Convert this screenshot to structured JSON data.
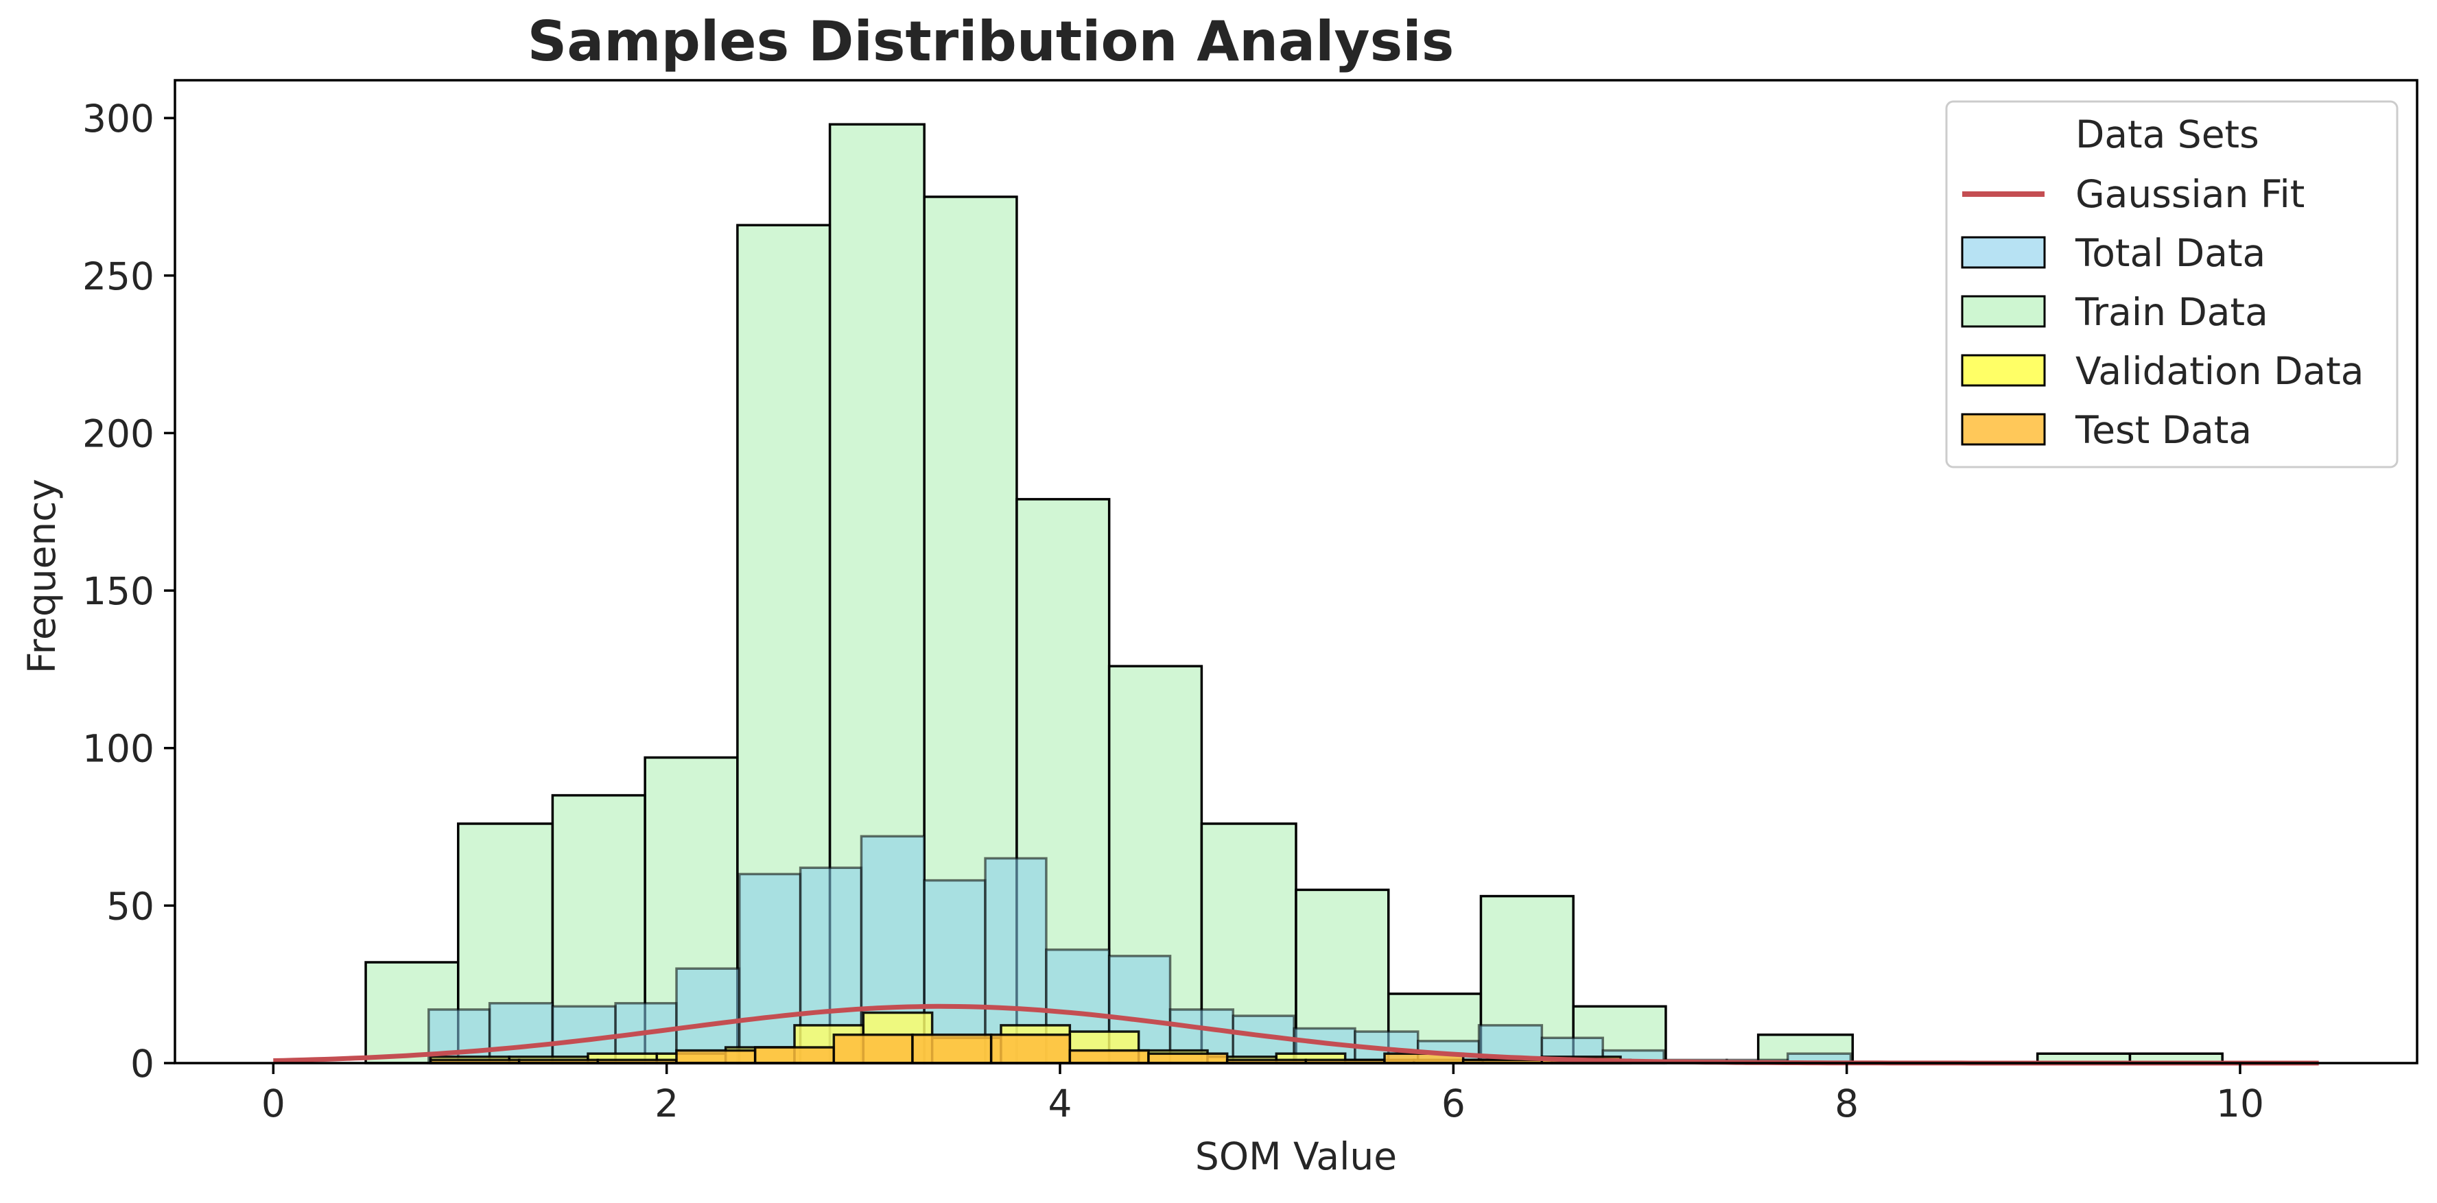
{
  "chart_data": {
    "type": "bar",
    "title": "Samples Distribution Analysis",
    "xlabel": "SOM Value",
    "ylabel": "Frequency",
    "xlim": [
      -0.5,
      10.9
    ],
    "ylim": [
      0,
      312
    ],
    "xticks": [
      0,
      2,
      4,
      6,
      8,
      10
    ],
    "yticks": [
      0,
      50,
      100,
      150,
      200,
      250,
      300
    ],
    "grid": false,
    "legend": {
      "title": "Data Sets",
      "position": "top-right",
      "entries": [
        "Gaussian Fit",
        "Total Data",
        "Train Data",
        "Validation Data",
        "Test Data"
      ]
    },
    "series": [
      {
        "name": "Train Data",
        "kind": "histogram",
        "color": "#c9f5cc",
        "bin_edges": [
          0.47,
          0.94,
          1.42,
          1.89,
          2.36,
          2.83,
          3.31,
          3.78,
          4.25,
          4.72,
          5.2,
          5.67,
          6.14,
          6.61,
          7.08,
          7.55,
          8.03,
          8.5,
          8.97,
          9.44,
          9.91
        ],
        "counts": [
          32,
          76,
          85,
          97,
          266,
          298,
          275,
          179,
          126,
          76,
          55,
          22,
          53,
          18,
          0,
          9,
          0,
          0,
          3,
          3
        ]
      },
      {
        "name": "Total Data",
        "kind": "histogram",
        "color": "#87ceeb",
        "bin_edges": [
          0.79,
          1.1,
          1.42,
          1.74,
          2.05,
          2.37,
          2.68,
          2.99,
          3.31,
          3.62,
          3.93,
          4.25,
          4.56,
          4.88,
          5.19,
          5.5,
          5.82,
          6.13,
          6.45,
          6.76,
          7.07,
          7.39,
          7.7,
          8.02,
          8.33,
          8.64,
          8.96,
          9.27,
          9.58,
          9.9
        ],
        "counts": [
          17,
          19,
          18,
          19,
          30,
          60,
          62,
          72,
          58,
          65,
          36,
          34,
          17,
          15,
          11,
          10,
          7,
          12,
          8,
          4,
          1,
          1,
          3,
          0,
          0,
          0,
          0,
          0,
          0
        ]
      },
      {
        "name": "Validation Data",
        "kind": "histogram",
        "color": "#ffff66",
        "bin_edges": [
          0.8,
          1.2,
          1.6,
          1.95,
          2.3,
          2.65,
          3.0,
          3.35,
          3.7,
          4.05,
          4.4,
          4.75,
          5.1,
          5.45,
          5.8,
          6.15,
          6.5,
          6.9
        ],
        "counts": [
          2,
          2,
          3,
          3,
          5,
          12,
          16,
          8,
          12,
          10,
          4,
          2,
          3,
          1,
          1,
          1,
          1
        ]
      },
      {
        "name": "Test Data",
        "kind": "histogram",
        "color": "#ffbe3c",
        "bin_edges": [
          0.8,
          1.25,
          1.65,
          2.05,
          2.45,
          2.85,
          3.25,
          3.65,
          4.05,
          4.45,
          4.85,
          5.25,
          5.65,
          6.05,
          6.45,
          6.85
        ],
        "counts": [
          1,
          1,
          1,
          4,
          5,
          9,
          9,
          9,
          4,
          3,
          1,
          1,
          3,
          1,
          2
        ]
      },
      {
        "name": "Gaussian Fit",
        "kind": "line",
        "color": "#c44e52",
        "mean": 3.4,
        "std": 1.35,
        "peak": 18,
        "x_range": [
          0,
          10.4
        ]
      }
    ]
  }
}
